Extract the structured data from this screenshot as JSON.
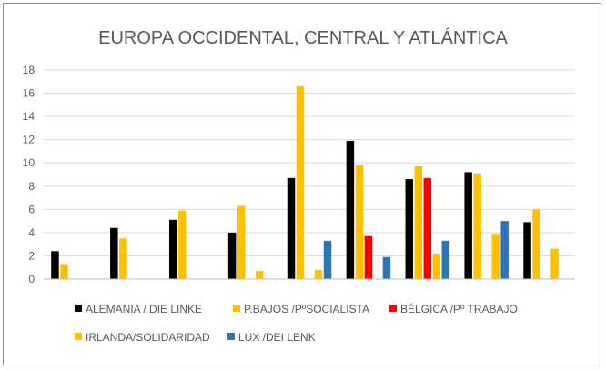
{
  "chart_data": {
    "type": "bar",
    "title": "EUROPA OCCIDENTAL, CENTRAL Y ATLÁNTICA",
    "xlabel": "",
    "ylabel": "",
    "ylim": [
      0,
      18
    ],
    "yticks": [
      0,
      2,
      4,
      6,
      8,
      10,
      12,
      14,
      16,
      18
    ],
    "grid": true,
    "legend_position": "bottom",
    "categories": [
      "",
      "",
      "",
      "",
      "",
      "",
      "",
      "",
      ""
    ],
    "series": [
      {
        "name": "ALEMANIA / DIE LINKE",
        "color": "#000000",
        "values": [
          2.4,
          4.4,
          5.1,
          4.0,
          8.7,
          11.9,
          8.6,
          9.2,
          4.9
        ]
      },
      {
        "name": "P.BAJOS /PºSOCIALISTA",
        "color": "#FFC000",
        "values": [
          1.3,
          3.5,
          5.9,
          6.3,
          16.6,
          9.8,
          9.7,
          9.1,
          6.0
        ]
      },
      {
        "name": "BÉLGICA /Pº TRABAJO",
        "color": "#FF0000",
        "values": [
          0,
          0,
          0,
          0,
          0,
          3.7,
          8.7,
          0,
          0
        ]
      },
      {
        "name": "IRLANDA/SOLIDARIDAD",
        "color": "#FFC000",
        "values": [
          0,
          0,
          0,
          0.7,
          0.8,
          0,
          2.2,
          3.9,
          2.6
        ]
      },
      {
        "name": "LUX /DEI LENK",
        "color": "#2E75B6",
        "values": [
          0,
          0,
          0,
          0,
          3.3,
          1.9,
          3.3,
          5.0,
          0
        ]
      }
    ]
  }
}
